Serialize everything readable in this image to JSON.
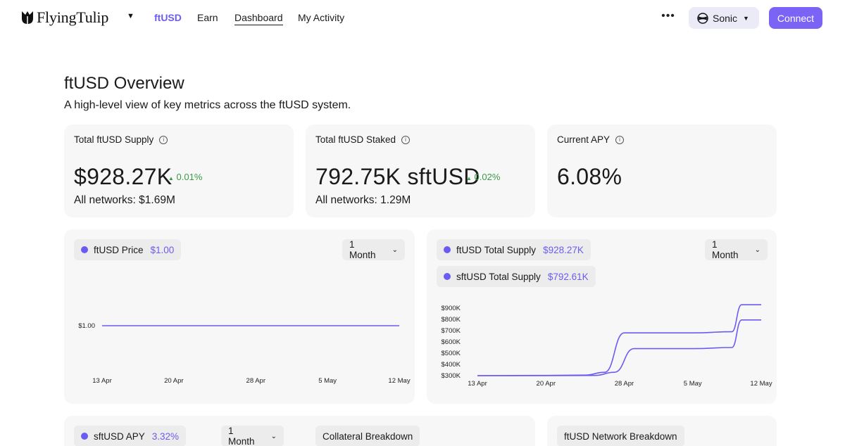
{
  "header": {
    "brand": "FlyingTulip",
    "nav": [
      {
        "label": "ftUSD",
        "active": true
      },
      {
        "label": "Earn",
        "active": false
      },
      {
        "label": "Dashboard",
        "active": false
      },
      {
        "label": "My Activity",
        "active": false
      }
    ],
    "more_icon": "more-horizontal-icon",
    "network_label": "Sonic",
    "connect_label": "Connect"
  },
  "page": {
    "title": "ftUSD Overview",
    "subtitle": "A high-level view of key metrics across the ftUSD system."
  },
  "stats": [
    {
      "label": "Total ftUSD Supply",
      "value": "$928.27K",
      "delta": "0.01%",
      "sub": "All networks: $1.69M"
    },
    {
      "label": "Total ftUSD Staked",
      "value": "792.75K sftUSD",
      "delta": "0.02%",
      "sub": "All networks: 1.29M"
    },
    {
      "label": "Current APY",
      "value": "6.08%",
      "delta": "",
      "sub": ""
    }
  ],
  "price_card": {
    "legend_label": "ftUSD Price",
    "legend_value": "$1.00",
    "range": "1 Month"
  },
  "supply_card": {
    "legend": [
      {
        "label": "ftUSD Total Supply",
        "value": "$928.27K"
      },
      {
        "label": "sftUSD Total Supply",
        "value": "$792.61K"
      }
    ],
    "range": "1 Month"
  },
  "bottom_cards": {
    "apy_label": "sftUSD APY",
    "apy_value": "3.32%",
    "apy_range": "1 Month",
    "collateral_title": "Collateral Breakdown",
    "network_title": "ftUSD Network Breakdown"
  },
  "colors": {
    "accent": "#6b5cf0",
    "positive": "#3a9a45",
    "card_bg": "#f7f7f7"
  },
  "chart_data": [
    {
      "type": "line",
      "title": "",
      "x_ticks": [
        "13 Apr",
        "20 Apr",
        "28 Apr",
        "5 May",
        "12 May"
      ],
      "y_ticks": [
        "$1.00"
      ],
      "series": [
        {
          "name": "ftUSD Price",
          "x": [
            "13 Apr",
            "12 May"
          ],
          "values": [
            1.0,
            1.0
          ]
        }
      ],
      "grid": false
    },
    {
      "type": "line",
      "title": "",
      "x_ticks": [
        "13 Apr",
        "20 Apr",
        "28 Apr",
        "5 May",
        "12 May"
      ],
      "y_ticks": [
        "$900K",
        "$800K",
        "$700K",
        "$600K",
        "$500K",
        "$400K",
        "$300K"
      ],
      "ylim": [
        300000,
        900000
      ],
      "series": [
        {
          "name": "ftUSD Total Supply",
          "x": [
            "13 Apr",
            "20 Apr",
            "24 Apr",
            "26 Apr",
            "28 Apr",
            "5 May",
            "9 May",
            "10 May",
            "12 May"
          ],
          "values": [
            300000,
            302000,
            305000,
            330000,
            680000,
            680000,
            690000,
            930000,
            930000
          ]
        },
        {
          "name": "sftUSD Total Supply",
          "x": [
            "13 Apr",
            "20 Apr",
            "25 Apr",
            "27 Apr",
            "29 Apr",
            "5 May",
            "9 May",
            "10 May",
            "12 May"
          ],
          "values": [
            300000,
            300000,
            302000,
            330000,
            540000,
            540000,
            550000,
            795000,
            795000
          ]
        }
      ],
      "grid": false
    }
  ]
}
